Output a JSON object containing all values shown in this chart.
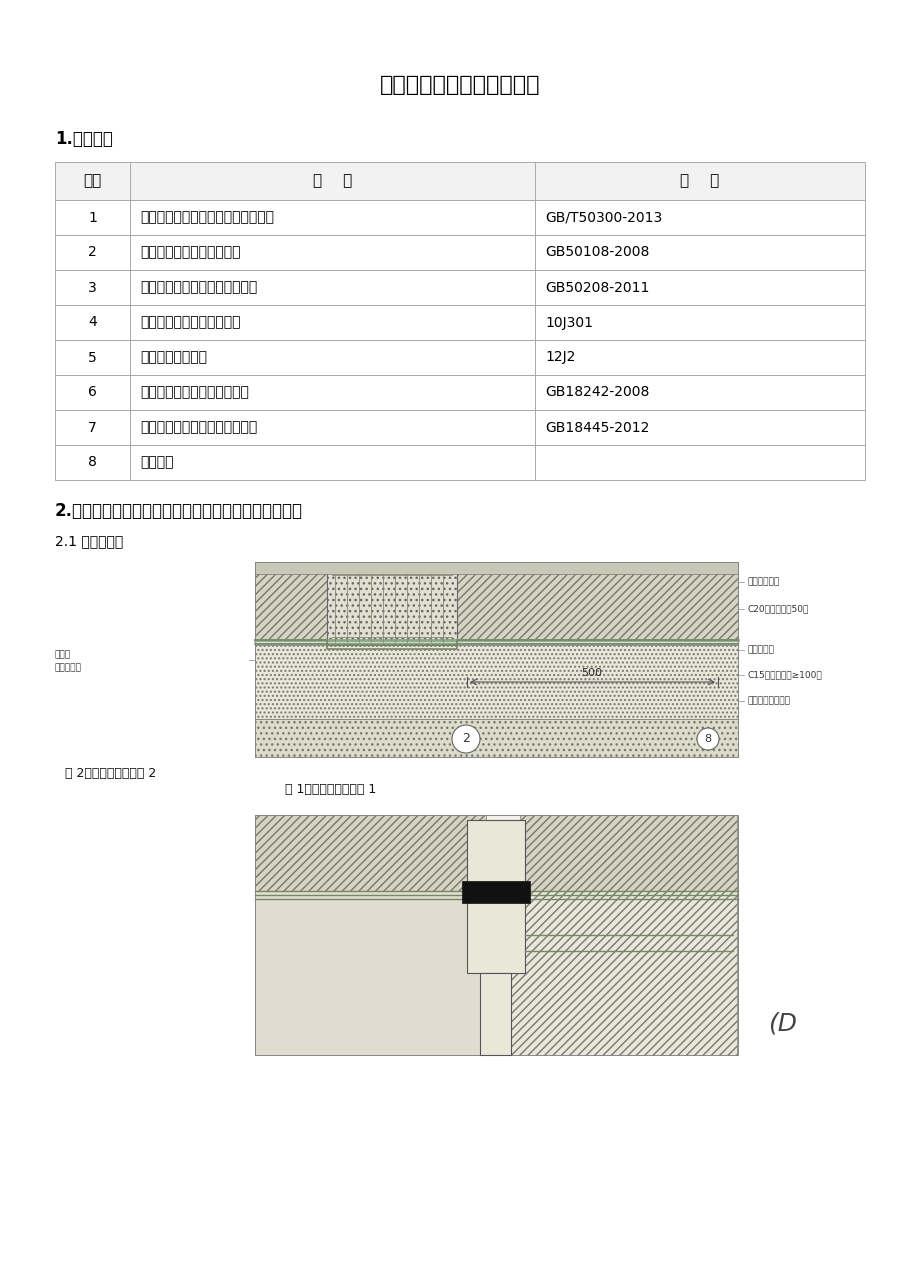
{
  "title": "地下室桩基头防水施工方案",
  "section1": "1.编制依据",
  "section2": "2.桩头桩基础防水结构图（以施工图纸为准仅供参考）",
  "section21": "2.1 桩基础防水",
  "fig1_caption_left": "图 2：桩基础防水详图 2",
  "fig1_caption_right": "图 1：桩基础防水详图 1",
  "table_headers": [
    "序号",
    "名    称",
    "编    号"
  ],
  "table_rows": [
    [
      "1",
      "《建筑工程施工质量验收统一标准》",
      "GB/T50300-2013"
    ],
    [
      "2",
      "《地下工程防水技术规范》",
      "GB50108-2008"
    ],
    [
      "3",
      "《地下防水工程质量验收规范》",
      "GB50208-2011"
    ],
    [
      "4",
      "《地下建筑防水构造图集》",
      "10J301"
    ],
    [
      "5",
      "《地下工程防水》",
      "12J2"
    ],
    [
      "6",
      "《弹性体改性沥青防水卷材》",
      "GB18242-2008"
    ],
    [
      "7",
      "《水泥基渗透结晶型防水材料》",
      "GB18445-2012"
    ],
    [
      "8",
      "施工图纸",
      ""
    ]
  ],
  "right_labels": [
    "主体结构底板",
    "C20细石混凝土50厚",
    "底板防水层",
    "C15混凝土垫层≥100厚",
    "地基土或素土夯实"
  ],
  "left_labels": [
    "桩基础",
    "桩基础钢筋"
  ],
  "dim_label": "500",
  "page_label": "(D",
  "bg_color": "#ffffff",
  "border_color": "#aaaaaa",
  "hatch_color": "#ccccbb",
  "title_fontsize": 16,
  "section_fontsize": 12,
  "body_fontsize": 10,
  "small_fontsize": 7
}
